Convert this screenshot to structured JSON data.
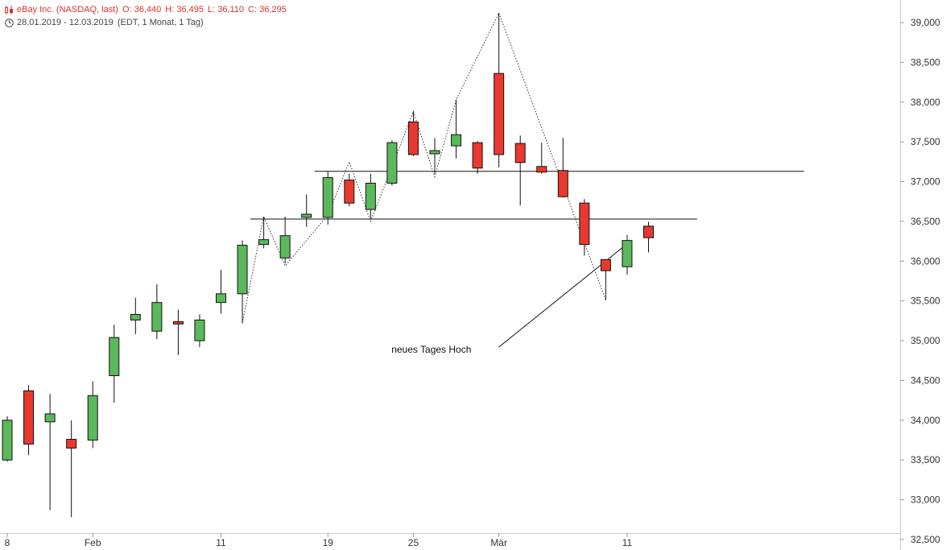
{
  "header": {
    "instrument": "eBay Inc. (NASDAQ, last)",
    "open": "O: 36,440",
    "high": "H: 36,495",
    "low": "L: 36,110",
    "close": "C: 36,295",
    "period": "28.01.2019 - 12.03.2019",
    "interval": "(EDT, 1 Monat, 1 Tag)"
  },
  "colors": {
    "up": "#5cb85c",
    "down": "#e8392e",
    "axis": "#cccccc",
    "text": "#333333"
  },
  "chart_data": {
    "type": "candlestick",
    "ylim": [
      32500,
      39200
    ],
    "y_ticks": [
      "32,500",
      "33,000",
      "33,500",
      "34,000",
      "34,500",
      "35,000",
      "35,500",
      "36,000",
      "36,500",
      "37,000",
      "37,500",
      "38,000",
      "38,500",
      "39,000"
    ],
    "y_tick_values": [
      32500,
      33000,
      33500,
      34000,
      34500,
      35000,
      35500,
      36000,
      36500,
      37000,
      37500,
      38000,
      38500,
      39000
    ],
    "x_ticks": [
      {
        "label": "8",
        "index": 0
      },
      {
        "label": "Feb",
        "index": 4
      },
      {
        "label": "11",
        "index": 10
      },
      {
        "label": "19",
        "index": 15
      },
      {
        "label": "25",
        "index": 19
      },
      {
        "label": "Mär",
        "index": 23
      },
      {
        "label": "11",
        "index": 29
      }
    ],
    "candles": [
      {
        "o": 33500,
        "h": 34050,
        "l": 33480,
        "c": 34000
      },
      {
        "o": 34370,
        "h": 34440,
        "l": 33560,
        "c": 33700
      },
      {
        "o": 33980,
        "h": 34330,
        "l": 32870,
        "c": 34080
      },
      {
        "o": 33760,
        "h": 34000,
        "l": 32780,
        "c": 33650
      },
      {
        "o": 33750,
        "h": 34490,
        "l": 33650,
        "c": 34310
      },
      {
        "o": 34560,
        "h": 35200,
        "l": 34220,
        "c": 35040
      },
      {
        "o": 35260,
        "h": 35540,
        "l": 35080,
        "c": 35330
      },
      {
        "o": 35120,
        "h": 35710,
        "l": 35020,
        "c": 35480
      },
      {
        "o": 35240,
        "h": 35390,
        "l": 34820,
        "c": 35210
      },
      {
        "o": 35000,
        "h": 35330,
        "l": 34920,
        "c": 35260
      },
      {
        "o": 35480,
        "h": 35890,
        "l": 35340,
        "c": 35590
      },
      {
        "o": 35590,
        "h": 36260,
        "l": 35220,
        "c": 36200
      },
      {
        "o": 36210,
        "h": 36560,
        "l": 36160,
        "c": 36270
      },
      {
        "o": 36040,
        "h": 36560,
        "l": 35970,
        "c": 36320
      },
      {
        "o": 36550,
        "h": 36840,
        "l": 36430,
        "c": 36590
      },
      {
        "o": 36550,
        "h": 37130,
        "l": 36460,
        "c": 37050
      },
      {
        "o": 37020,
        "h": 37100,
        "l": 36690,
        "c": 36730
      },
      {
        "o": 36650,
        "h": 37100,
        "l": 36530,
        "c": 36980
      },
      {
        "o": 36980,
        "h": 37520,
        "l": 36950,
        "c": 37490
      },
      {
        "o": 37750,
        "h": 37890,
        "l": 37320,
        "c": 37340
      },
      {
        "o": 37350,
        "h": 37550,
        "l": 37100,
        "c": 37390
      },
      {
        "o": 37450,
        "h": 38030,
        "l": 37290,
        "c": 37590
      },
      {
        "o": 37490,
        "h": 37510,
        "l": 37100,
        "c": 37170
      },
      {
        "o": 38360,
        "h": 39120,
        "l": 37180,
        "c": 37340
      },
      {
        "o": 37480,
        "h": 37580,
        "l": 36700,
        "c": 37240
      },
      {
        "o": 37190,
        "h": 37490,
        "l": 37100,
        "c": 37120
      },
      {
        "o": 37140,
        "h": 37550,
        "l": 36800,
        "c": 36810
      },
      {
        "o": 36730,
        "h": 36780,
        "l": 36070,
        "c": 36210
      },
      {
        "o": 36020,
        "h": 36020,
        "l": 35510,
        "c": 35880
      },
      {
        "o": 35930,
        "h": 36330,
        "l": 35830,
        "c": 36260
      },
      {
        "o": 36440,
        "h": 36495,
        "l": 36110,
        "c": 36295
      }
    ],
    "zigzag": [
      {
        "i": 11,
        "v": 35220
      },
      {
        "i": 12,
        "v": 36560
      },
      {
        "i": 13,
        "v": 35940
      },
      {
        "i": 15,
        "v": 36580
      },
      {
        "i": 16,
        "v": 37250
      },
      {
        "i": 17,
        "v": 36500
      },
      {
        "i": 19,
        "v": 37880
      },
      {
        "i": 20,
        "v": 37060
      },
      {
        "i": 21,
        "v": 38030
      },
      {
        "i": 23,
        "v": 39120
      },
      {
        "i": 28,
        "v": 35510
      }
    ],
    "hlines": [
      {
        "value": 37130,
        "from": 14.6,
        "to": 37.5
      },
      {
        "value": 36530,
        "from": 11.6,
        "to": 32.5
      }
    ],
    "trendline": {
      "from": {
        "i": 23,
        "v": 34920
      },
      "to": {
        "i": 29.1,
        "v": 36240
      }
    },
    "annotation": {
      "text": "neues Tages Hoch",
      "i": 18.2,
      "v": 34850
    }
  }
}
